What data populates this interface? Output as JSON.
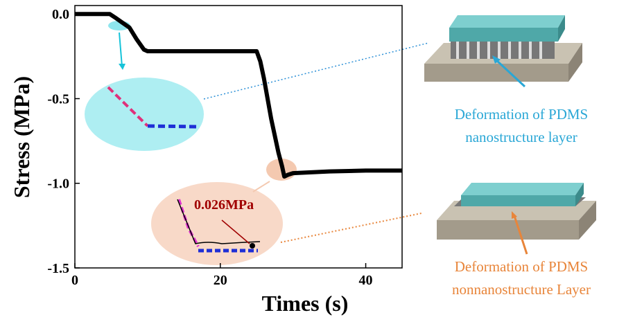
{
  "chart_data": {
    "type": "line",
    "x_label": "Times (s)",
    "y_label": "Stress (MPa)",
    "x": [
      0,
      4.8,
      5.5,
      6.5,
      7.5,
      8.5,
      9.5,
      10,
      25,
      25.5,
      26,
      27,
      28,
      28.5,
      28.8,
      29.3,
      30,
      35,
      40,
      45
    ],
    "series": [
      {
        "color": "#000000",
        "values": [
          0,
          0,
          -0.02,
          -0.05,
          -0.08,
          -0.15,
          -0.21,
          -0.22,
          -0.22,
          -0.28,
          -0.38,
          -0.62,
          -0.82,
          -0.9,
          -0.96,
          -0.95,
          -0.94,
          -0.93,
          -0.925,
          -0.925
        ]
      }
    ],
    "xlim": [
      0,
      45
    ],
    "ylim": [
      -1.5,
      0.05
    ],
    "xticks": [
      0,
      20,
      40
    ],
    "yticks": [
      {
        "value": 0,
        "label": "0.0"
      },
      {
        "value": -0.5,
        "label": "-0.5"
      },
      {
        "value": -1,
        "label": "-1.0"
      },
      {
        "value": -1.5,
        "label": "-1.5"
      }
    ],
    "annotation": "0.026MPa",
    "captions": [
      [
        "Deformation of PDMS",
        "nanostructure layer"
      ],
      [
        "Deformation of PDMS",
        "nonnanostructure Layer"
      ]
    ]
  }
}
